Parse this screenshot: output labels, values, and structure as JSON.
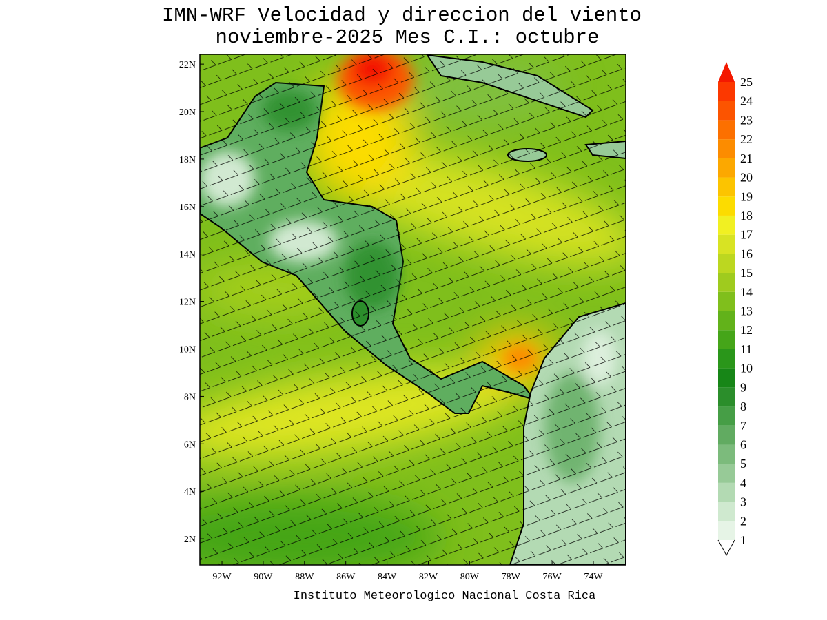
{
  "title": [
    "IMN-WRF Velocidad y direccion del viento",
    "noviembre-2025 Mes C.I.: octubre"
  ],
  "footer": "Instituto Meteorologico Nacional Costa Rica",
  "map": {
    "lonlim": [
      -93.07,
      -72.43
    ],
    "latlim": [
      0.9,
      22.41
    ],
    "lon_ticks": [
      {
        "value": -92,
        "label": "92W"
      },
      {
        "value": -90,
        "label": "90W"
      },
      {
        "value": -88,
        "label": "88W"
      },
      {
        "value": -86,
        "label": "86W"
      },
      {
        "value": -84,
        "label": "84W"
      },
      {
        "value": -82,
        "label": "82W"
      },
      {
        "value": -80,
        "label": "80W"
      },
      {
        "value": -78,
        "label": "78W"
      },
      {
        "value": -76,
        "label": "76W"
      },
      {
        "value": -74,
        "label": "74W"
      }
    ],
    "lat_ticks": [
      {
        "value": 2,
        "label": "2N"
      },
      {
        "value": 4,
        "label": "4N"
      },
      {
        "value": 6,
        "label": "6N"
      },
      {
        "value": 8,
        "label": "8N"
      },
      {
        "value": 10,
        "label": "10N"
      },
      {
        "value": 12,
        "label": "12N"
      },
      {
        "value": 14,
        "label": "14N"
      },
      {
        "value": 16,
        "label": "16N"
      },
      {
        "value": 18,
        "label": "18N"
      },
      {
        "value": 20,
        "label": "20N"
      },
      {
        "value": 22,
        "label": "22N"
      }
    ]
  },
  "colorbar": {
    "levels": [
      1,
      2,
      3,
      4,
      5,
      6,
      7,
      8,
      9,
      10,
      11,
      12,
      13,
      14,
      15,
      16,
      17,
      18,
      19,
      20,
      21,
      22,
      23,
      24,
      25
    ],
    "colors": [
      "#e6f4e6",
      "#cfe9cf",
      "#b3dab3",
      "#97ca97",
      "#7cbb7c",
      "#61ab61",
      "#469e46",
      "#2b8e2b",
      "#178617",
      "#2a961a",
      "#45a519",
      "#62b21a",
      "#80bf1c",
      "#9fcb1e",
      "#bcd720",
      "#d8e323",
      "#f1f022",
      "#fcdc00",
      "#fcc400",
      "#fca800",
      "#fc8c00",
      "#fc7000",
      "#fc5400",
      "#fc3800",
      "#f41800"
    ]
  }
}
